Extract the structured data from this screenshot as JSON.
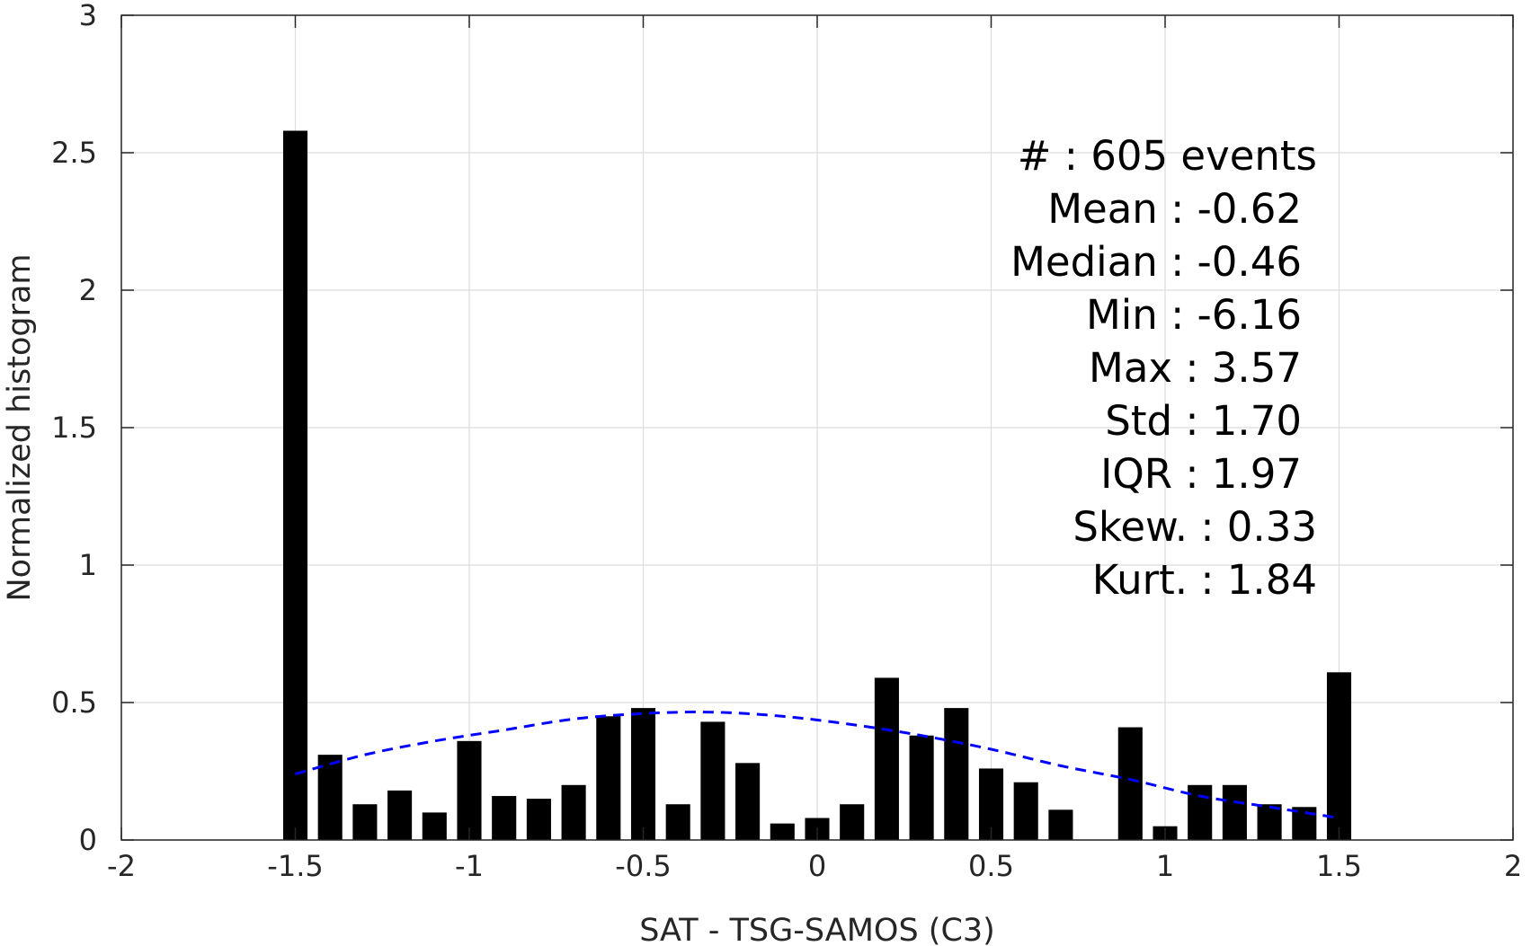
{
  "chart_data": {
    "type": "bar",
    "xlabel": "SAT - TSG-SAMOS (C3)",
    "ylabel": "Normalized histogram",
    "xlim": [
      -2,
      2
    ],
    "ylim": [
      0,
      3
    ],
    "grid": true,
    "x_ticks": [
      "-2",
      "-1.5",
      "-1",
      "-0.5",
      "0",
      "0.5",
      "1",
      "1.5",
      "2"
    ],
    "y_ticks": [
      "0",
      "0.5",
      "1",
      "1.5",
      "2",
      "2.5",
      "3"
    ],
    "bar_color": "#000000",
    "bar_width": 0.07,
    "bins": [
      -1.5,
      -1.4,
      -1.3,
      -1.2,
      -1.1,
      -1.0,
      -0.9,
      -0.8,
      -0.7,
      -0.6,
      -0.5,
      -0.4,
      -0.3,
      -0.2,
      -0.1,
      0.0,
      0.1,
      0.2,
      0.3,
      0.4,
      0.5,
      0.6,
      0.7,
      0.8,
      0.9,
      1.0,
      1.1,
      1.2,
      1.3,
      1.4,
      1.5
    ],
    "values": [
      2.58,
      0.31,
      0.13,
      0.18,
      0.1,
      0.36,
      0.16,
      0.15,
      0.2,
      0.45,
      0.48,
      0.13,
      0.43,
      0.28,
      0.06,
      0.08,
      0.13,
      0.59,
      0.38,
      0.48,
      0.26,
      0.21,
      0.11,
      0.0,
      0.41,
      0.05,
      0.2,
      0.2,
      0.13,
      0.12,
      0.61
    ],
    "fit_curve": {
      "style": "dashed",
      "color": "#0000ff",
      "x": [
        -1.5,
        -1.3,
        -1.1,
        -0.9,
        -0.7,
        -0.5,
        -0.3,
        -0.1,
        0.1,
        0.3,
        0.5,
        0.7,
        0.9,
        1.1,
        1.3,
        1.5
      ],
      "y": [
        0.24,
        0.31,
        0.36,
        0.4,
        0.44,
        0.46,
        0.465,
        0.45,
        0.42,
        0.38,
        0.33,
        0.27,
        0.22,
        0.16,
        0.12,
        0.08
      ]
    }
  },
  "stats": {
    "lines": [
      "#  : 605 events",
      "Mean : -0.62",
      "Median : -0.46",
      "Min : -6.16",
      "Max : 3.57",
      "Std : 1.70",
      "IQR : 1.97",
      "Skew. : 0.33",
      "Kurt. : 1.84"
    ]
  }
}
